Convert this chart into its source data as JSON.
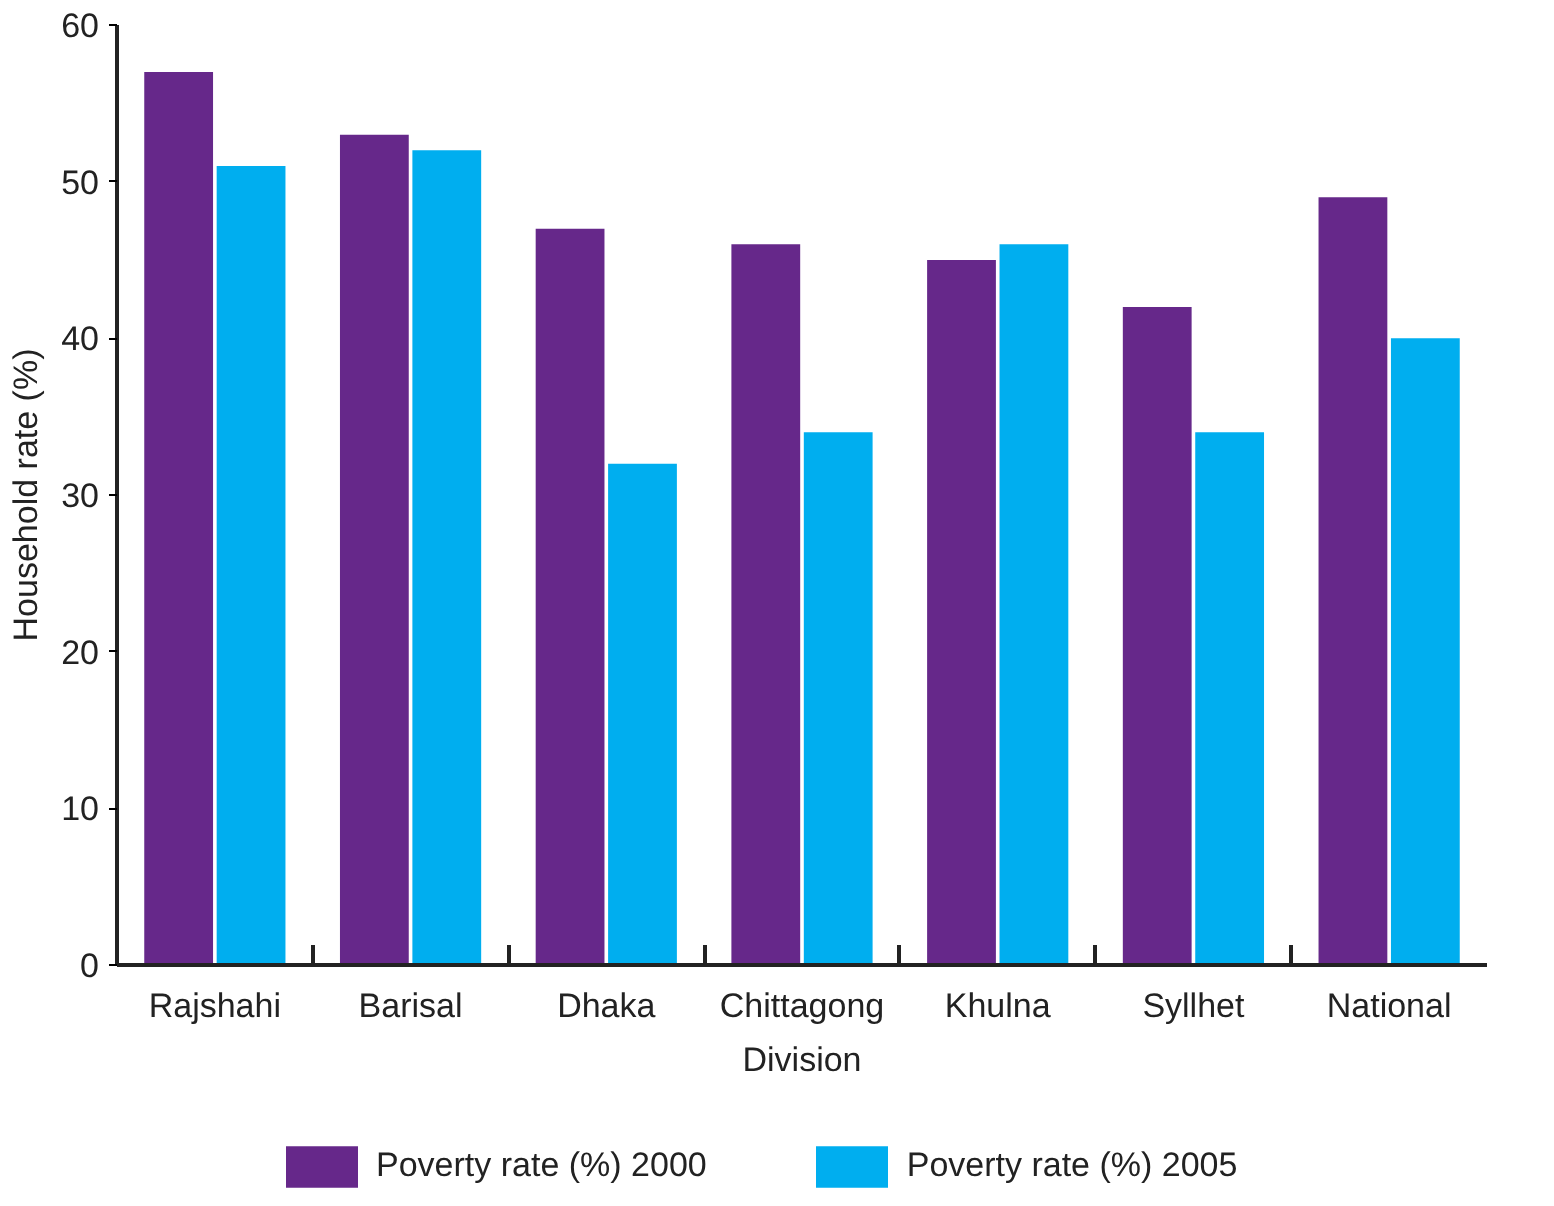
{
  "chart_data": {
    "type": "bar",
    "xlabel": "Division",
    "ylabel": "Household rate (%)",
    "categories": [
      "Rajshahi",
      "Barisal",
      "Dhaka",
      "Chittagong",
      "Khulna",
      "Syllhet",
      "National"
    ],
    "series": [
      {
        "name": "Poverty rate (%) 2000",
        "color": "#66288a",
        "values": [
          57,
          53,
          47,
          46,
          45,
          42,
          49
        ]
      },
      {
        "name": "Poverty rate (%) 2005",
        "color": "#00aeef",
        "values": [
          51,
          52,
          32,
          34,
          46,
          34,
          40
        ]
      }
    ],
    "ylim": [
      0,
      60
    ],
    "yticks": [
      0,
      10,
      20,
      30,
      40,
      50,
      60
    ],
    "grid": false,
    "legend": "bottom"
  }
}
